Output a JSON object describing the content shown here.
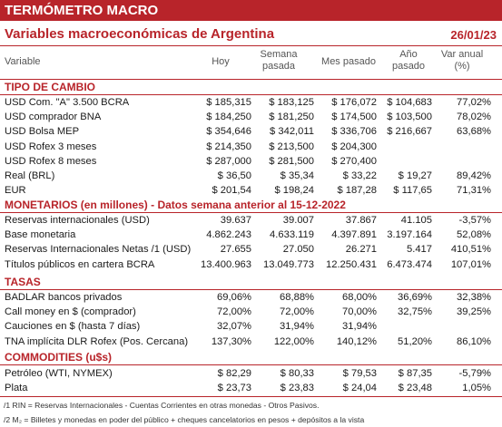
{
  "header": {
    "band_title": "TERMÓMETRO MACRO",
    "subtitle": "Variables macroeconómicas de Argentina",
    "date": "26/01/23"
  },
  "columns": {
    "variable": "Variable",
    "hoy": "Hoy",
    "semana": "Semana pasada",
    "mes": "Mes pasado",
    "ano": "Año pasado",
    "var_anual": "Var anual (%)"
  },
  "sections": {
    "tipo_cambio": "TIPO DE CAMBIO",
    "monetarios": "MONETARIOS (en millones) - Datos semana anterior al 15-12-2022",
    "tasas": "TASAS",
    "commodities": "COMMODITIES (u$s)"
  },
  "rows": [
    [
      "USD Com. \"A\" 3.500 BCRA",
      "$ 185,315",
      "$ 183,125",
      "$ 176,072",
      "$ 104,683",
      "77,02%"
    ],
    [
      "USD comprador BNA",
      "$ 184,250",
      "$ 181,250",
      "$ 174,500",
      "$ 103,500",
      "78,02%"
    ],
    [
      "USD Bolsa MEP",
      "$ 354,646",
      "$ 342,011",
      "$ 336,706",
      "$ 216,667",
      "63,68%"
    ],
    [
      "USD Rofex 3 meses",
      "$ 214,350",
      "$ 213,500",
      "$ 204,300",
      "",
      ""
    ],
    [
      "USD Rofex 8 meses",
      "$ 287,000",
      "$ 281,500",
      "$ 270,400",
      "",
      ""
    ],
    [
      "Real (BRL)",
      "$ 36,50",
      "$ 35,34",
      "$ 33,22",
      "$ 19,27",
      "89,42%"
    ],
    [
      "EUR",
      "$ 201,54",
      "$ 198,24",
      "$ 187,28",
      "$ 117,65",
      "71,31%"
    ],
    [
      "Reservas internacionales (USD)",
      "39.637",
      "39.007",
      "37.867",
      "41.105",
      "-3,57%"
    ],
    [
      "Base monetaria",
      "4.862.243",
      "4.633.119",
      "4.397.891",
      "3.197.164",
      "52,08%"
    ],
    [
      "Reservas Internacionales Netas /1 (USD)",
      "27.655",
      "27.050",
      "26.271",
      "5.417",
      "410,51%"
    ],
    [
      "Títulos públicos en cartera BCRA",
      "13.400.963",
      "13.049.773",
      "12.250.431",
      "6.473.474",
      "107,01%"
    ],
    [
      "BADLAR bancos privados",
      "69,06%",
      "68,88%",
      "68,00%",
      "36,69%",
      "32,38%"
    ],
    [
      "Call money en $ (comprador)",
      "72,00%",
      "72,00%",
      "70,00%",
      "32,75%",
      "39,25%"
    ],
    [
      "Cauciones en $ (hasta 7 días)",
      "32,07%",
      "31,94%",
      "31,94%",
      "",
      ""
    ],
    [
      "TNA implícita DLR Rofex (Pos. Cercana)",
      "137,30%",
      "122,00%",
      "140,12%",
      "51,20%",
      "86,10%"
    ],
    [
      "Petróleo (WTI, NYMEX)",
      "$ 82,29",
      "$ 80,33",
      "$ 79,53",
      "$ 87,35",
      "-5,79%"
    ],
    [
      "Plata",
      "$ 23,73",
      "$ 23,83",
      "$ 24,04",
      "$ 23,48",
      "1,05%"
    ]
  ],
  "footnotes": {
    "f1": "/1 RIN = Reservas Internacionales - Cuentas Corrientes en otras monedas - Otros Pasivos.",
    "f2": "/2 M₂ = Billetes y monedas en poder del público + cheques cancelatorios en pesos + depósitos a la vista"
  }
}
